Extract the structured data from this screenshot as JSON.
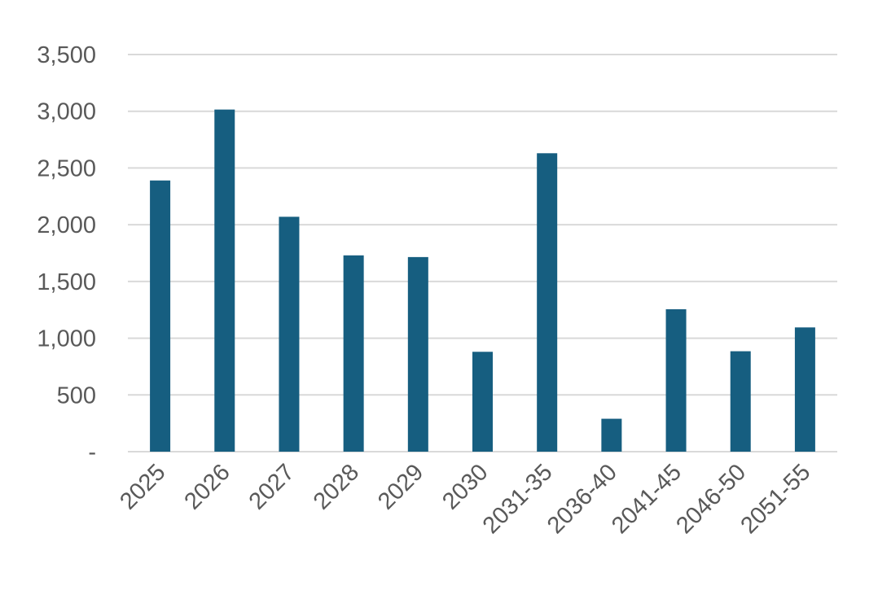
{
  "chart_data": {
    "type": "bar",
    "title": "",
    "xlabel": "",
    "ylabel": "",
    "categories": [
      "2025",
      "2026",
      "2027",
      "2028",
      "2029",
      "2030",
      "2031-35",
      "2036-40",
      "2041-45",
      "2046-50",
      "2051-55"
    ],
    "series": [
      {
        "values": [
          2390,
          3015,
          2070,
          1730,
          1715,
          880,
          2630,
          290,
          1255,
          885,
          1095
        ],
        "color": "#165e80"
      }
    ],
    "ylim": [
      0,
      3500
    ],
    "yticks": [
      0,
      500,
      1000,
      1500,
      2000,
      2500,
      3000,
      3500
    ],
    "ytick_labels": [
      "-",
      "500",
      "1,000",
      "1,500",
      "2,000",
      "2,500",
      "3,000",
      "3,500"
    ],
    "grid": true,
    "legend": "none",
    "colors": {
      "bar": "#165e80",
      "grid": "#d9d9d9",
      "text": "#595959"
    }
  }
}
